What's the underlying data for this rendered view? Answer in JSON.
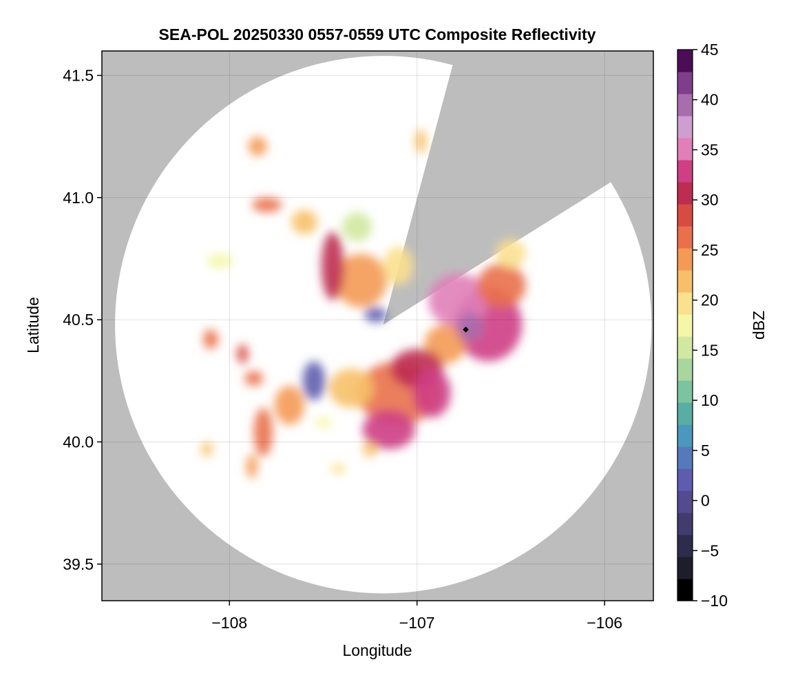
{
  "chart_data": {
    "type": "heatmap",
    "title": "SEA-POL 20250330 0557-0559 UTC Composite Reflectivity",
    "xlabel": "Longitude",
    "ylabel": "Latitude",
    "xlim": [
      -108.68,
      -105.74
    ],
    "ylim": [
      39.35,
      41.6
    ],
    "x_ticks": [
      -108,
      -107,
      -106
    ],
    "x_tick_labels": [
      "−108",
      "−107",
      "−106"
    ],
    "y_ticks": [
      39.5,
      40.0,
      40.5,
      41.0,
      41.5
    ],
    "y_tick_labels": [
      "39.5",
      "40.0",
      "40.5",
      "41.0",
      "41.5"
    ],
    "grid": true,
    "radar": {
      "site_lon": -107.18,
      "site_lat": 40.48,
      "max_range_lon_deg": 1.43,
      "max_range_lat_deg": 1.1,
      "blocked_sectors_deg_from_north": [
        [
          15,
          58
        ]
      ]
    },
    "marker": {
      "lon": -106.74,
      "lat": 40.46
    },
    "colorbar": {
      "label": "dBZ",
      "min": -10,
      "max": 45,
      "ticks": [
        -10,
        -5,
        0,
        5,
        10,
        15,
        20,
        25,
        30,
        35,
        40,
        45
      ],
      "tick_labels": [
        "−10",
        "−5",
        "0",
        "5",
        "10",
        "15",
        "20",
        "25",
        "30",
        "35",
        "40",
        "45"
      ],
      "colormap": [
        "#000000",
        "#1e1e2a",
        "#2e2c4c",
        "#423c6e",
        "#544a8f",
        "#5e5cae",
        "#5579bb",
        "#4c97bd",
        "#58aea3",
        "#7cc4a0",
        "#a9d69f",
        "#d1e8a0",
        "#f5f7a7",
        "#fbe08f",
        "#f7c068",
        "#f49a55",
        "#e9704a",
        "#d84b43",
        "#be2c52",
        "#ce3f85",
        "#e07fb8",
        "#cf9ed0",
        "#a86dad",
        "#7e3e8c",
        "#4b0d56"
      ]
    },
    "cells": [
      {
        "lon": -106.62,
        "lat": 40.48,
        "rlon": 0.18,
        "rlat": 0.15,
        "dbz": 32
      },
      {
        "lon": -106.78,
        "lat": 40.58,
        "rlon": 0.16,
        "rlat": 0.11,
        "dbz": 34
      },
      {
        "lon": -106.55,
        "lat": 40.64,
        "rlon": 0.13,
        "rlat": 0.09,
        "dbz": 26
      },
      {
        "lon": -106.85,
        "lat": 40.4,
        "rlon": 0.11,
        "rlat": 0.08,
        "dbz": 25
      },
      {
        "lon": -106.72,
        "lat": 40.47,
        "rlon": 0.07,
        "rlat": 0.06,
        "dbz": 40
      },
      {
        "lon": -106.5,
        "lat": 40.77,
        "rlon": 0.08,
        "rlat": 0.06,
        "dbz": 20
      },
      {
        "lon": -107.1,
        "lat": 40.2,
        "rlon": 0.22,
        "rlat": 0.13,
        "dbz": 27
      },
      {
        "lon": -107.0,
        "lat": 40.3,
        "rlon": 0.14,
        "rlat": 0.08,
        "dbz": 30
      },
      {
        "lon": -107.15,
        "lat": 40.05,
        "rlon": 0.14,
        "rlat": 0.08,
        "dbz": 32
      },
      {
        "lon": -106.92,
        "lat": 40.2,
        "rlon": 0.1,
        "rlat": 0.1,
        "dbz": 33
      },
      {
        "lon": -107.35,
        "lat": 40.22,
        "rlon": 0.12,
        "rlat": 0.08,
        "dbz": 21
      },
      {
        "lon": -107.55,
        "lat": 40.25,
        "rlon": 0.06,
        "rlat": 0.08,
        "dbz": 2
      },
      {
        "lon": -107.3,
        "lat": 40.66,
        "rlon": 0.14,
        "rlat": 0.11,
        "dbz": 24
      },
      {
        "lon": -107.45,
        "lat": 40.72,
        "rlon": 0.06,
        "rlat": 0.14,
        "dbz": 30
      },
      {
        "lon": -107.1,
        "lat": 40.72,
        "rlon": 0.08,
        "rlat": 0.08,
        "dbz": 20
      },
      {
        "lon": -107.32,
        "lat": 40.88,
        "rlon": 0.08,
        "rlat": 0.06,
        "dbz": 15
      },
      {
        "lon": -107.6,
        "lat": 40.9,
        "rlon": 0.07,
        "rlat": 0.05,
        "dbz": 22
      },
      {
        "lon": -107.8,
        "lat": 40.97,
        "rlon": 0.08,
        "rlat": 0.03,
        "dbz": 27
      },
      {
        "lon": -107.22,
        "lat": 40.52,
        "rlon": 0.06,
        "rlat": 0.03,
        "dbz": 3
      },
      {
        "lon": -107.68,
        "lat": 40.15,
        "rlon": 0.08,
        "rlat": 0.08,
        "dbz": 24
      },
      {
        "lon": -107.82,
        "lat": 40.04,
        "rlon": 0.05,
        "rlat": 0.1,
        "dbz": 26
      },
      {
        "lon": -107.88,
        "lat": 39.9,
        "rlon": 0.03,
        "rlat": 0.05,
        "dbz": 24
      },
      {
        "lon": -107.87,
        "lat": 40.26,
        "rlon": 0.05,
        "rlat": 0.03,
        "dbz": 27
      },
      {
        "lon": -108.1,
        "lat": 40.42,
        "rlon": 0.04,
        "rlat": 0.04,
        "dbz": 26
      },
      {
        "lon": -107.93,
        "lat": 40.36,
        "rlon": 0.03,
        "rlat": 0.04,
        "dbz": 28
      },
      {
        "lon": -107.85,
        "lat": 41.21,
        "rlon": 0.05,
        "rlat": 0.04,
        "dbz": 24
      },
      {
        "lon": -106.98,
        "lat": 41.23,
        "rlon": 0.03,
        "rlat": 0.05,
        "dbz": 22
      },
      {
        "lon": -108.05,
        "lat": 40.74,
        "rlon": 0.07,
        "rlat": 0.03,
        "dbz": 17
      },
      {
        "lon": -108.12,
        "lat": 39.97,
        "rlon": 0.03,
        "rlat": 0.03,
        "dbz": 22
      },
      {
        "lon": -107.42,
        "lat": 39.89,
        "rlon": 0.04,
        "rlat": 0.02,
        "dbz": 19
      },
      {
        "lon": -107.25,
        "lat": 39.97,
        "rlon": 0.04,
        "rlat": 0.03,
        "dbz": 22
      },
      {
        "lon": -107.5,
        "lat": 40.08,
        "rlon": 0.05,
        "rlat": 0.02,
        "dbz": 18
      }
    ]
  }
}
